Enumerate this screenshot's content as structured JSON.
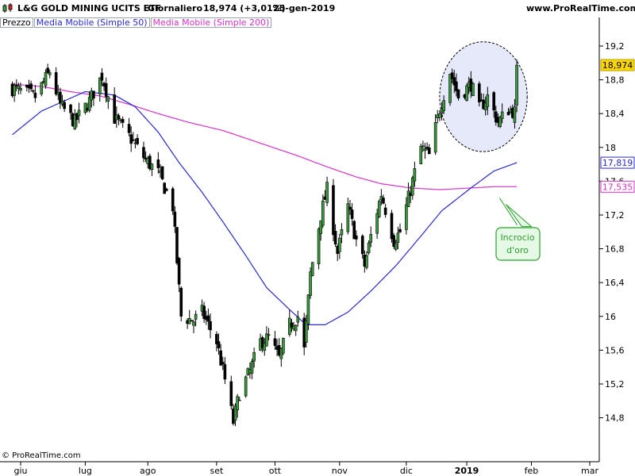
{
  "header": {
    "title": "L&G GOLD MINING UCITS ETF",
    "period": "Giornaliero",
    "last_price": "18,974 (+3,01%)",
    "date": "25-gen-2019",
    "site": "www.ProRealTime.com"
  },
  "legend": [
    "Prezzo",
    "Media Mobile (Simple 50)",
    "Media Mobile (Simple 200)"
  ],
  "copyright": "© ProRealTime.com",
  "annotation": {
    "text_line1": "Incrocio",
    "text_line2": "d'oro"
  },
  "colors": {
    "up": "#3c9a3c",
    "down": "#000000",
    "sma50": "#2929d6",
    "sma200": "#d633c8",
    "last_price_bg": "#ffd700",
    "annotation_border": "#2aa12a",
    "highlight_fill": "#e6e9fa"
  },
  "chart_data": {
    "type": "candlestick",
    "title": "L&G GOLD MINING UCITS ETF",
    "ylim": [
      14.4,
      19.5
    ],
    "yticks": [
      "19,2",
      "18,8",
      "18,4",
      "18",
      "17,6",
      "17,2",
      "16,8",
      "16,4",
      "16",
      "15,6",
      "15,2",
      "14,8"
    ],
    "ytick_values": [
      19.2,
      18.8,
      18.4,
      18.0,
      17.6,
      17.2,
      16.8,
      16.4,
      16.0,
      15.6,
      15.2,
      14.8
    ],
    "xticks": [
      "giu",
      "lug",
      "ago",
      "set",
      "ott",
      "nov",
      "dic",
      "2019",
      "feb",
      "mar"
    ],
    "xtick_dates": [
      "2018-06-01",
      "2018-07-02",
      "2018-08-01",
      "2018-09-03",
      "2018-10-01",
      "2018-11-01",
      "2018-12-03",
      "2019-01-01",
      "2019-02-01",
      "2019-03-01"
    ],
    "date_range": [
      "2018-05-28",
      "2019-03-25"
    ],
    "price_labels": [
      {
        "name": "Prezzo",
        "value": 18.974,
        "label": "18,974"
      },
      {
        "name": "Media Mobile (Simple 50)",
        "value": 17.819,
        "label": "17,819"
      },
      {
        "name": "Media Mobile (Simple 200)",
        "value": 17.535,
        "label": "17,535"
      }
    ],
    "close_anchors": [
      [
        "2018-05-28",
        18.7
      ],
      [
        "2018-06-08",
        18.6
      ],
      [
        "2018-06-15",
        18.9
      ],
      [
        "2018-06-20",
        18.5
      ],
      [
        "2018-06-27",
        18.3
      ],
      [
        "2018-07-04",
        18.55
      ],
      [
        "2018-07-10",
        18.85
      ],
      [
        "2018-07-16",
        18.35
      ],
      [
        "2018-07-24",
        18.1
      ],
      [
        "2018-07-31",
        17.85
      ],
      [
        "2018-08-06",
        17.7
      ],
      [
        "2018-08-13",
        17.3
      ],
      [
        "2018-08-17",
        16.0
      ],
      [
        "2018-08-23",
        15.95
      ],
      [
        "2018-08-27",
        16.05
      ],
      [
        "2018-09-03",
        15.7
      ],
      [
        "2018-09-07",
        15.25
      ],
      [
        "2018-09-11",
        14.75
      ],
      [
        "2018-09-14",
        15.1
      ],
      [
        "2018-09-19",
        15.35
      ],
      [
        "2018-09-24",
        15.7
      ],
      [
        "2018-09-28",
        15.75
      ],
      [
        "2018-10-03",
        15.5
      ],
      [
        "2018-10-08",
        15.9
      ],
      [
        "2018-10-12",
        16.0
      ],
      [
        "2018-10-15",
        15.6
      ],
      [
        "2018-10-18",
        16.5
      ],
      [
        "2018-10-23",
        17.2
      ],
      [
        "2018-10-26",
        17.5
      ],
      [
        "2018-10-31",
        16.75
      ],
      [
        "2018-11-05",
        17.3
      ],
      [
        "2018-11-09",
        16.9
      ],
      [
        "2018-11-13",
        16.6
      ],
      [
        "2018-11-16",
        16.95
      ],
      [
        "2018-11-21",
        17.45
      ],
      [
        "2018-11-27",
        16.9
      ],
      [
        "2018-11-30",
        17.0
      ],
      [
        "2018-12-05",
        17.5
      ],
      [
        "2018-12-10",
        18.0
      ],
      [
        "2018-12-14",
        17.9
      ],
      [
        "2018-12-19",
        18.45
      ],
      [
        "2018-12-24",
        18.9
      ],
      [
        "2018-12-28",
        18.6
      ],
      [
        "2019-01-03",
        18.75
      ],
      [
        "2019-01-07",
        18.45
      ],
      [
        "2019-01-11",
        18.6
      ],
      [
        "2019-01-16",
        18.3
      ],
      [
        "2019-01-21",
        18.45
      ],
      [
        "2019-01-24",
        18.42
      ],
      [
        "2019-01-25",
        18.974
      ]
    ],
    "ma50_anchors": [
      [
        "2018-05-28",
        18.15
      ],
      [
        "2018-06-11",
        18.43
      ],
      [
        "2018-07-02",
        18.66
      ],
      [
        "2018-07-16",
        18.62
      ],
      [
        "2018-07-26",
        18.48
      ],
      [
        "2018-08-06",
        18.18
      ],
      [
        "2018-08-16",
        17.82
      ],
      [
        "2018-08-27",
        17.47
      ],
      [
        "2018-09-06",
        17.12
      ],
      [
        "2018-09-17",
        16.72
      ],
      [
        "2018-09-27",
        16.34
      ],
      [
        "2018-10-08",
        16.08
      ],
      [
        "2018-10-16",
        15.9
      ],
      [
        "2018-10-25",
        15.9
      ],
      [
        "2018-11-05",
        16.05
      ],
      [
        "2018-11-16",
        16.3
      ],
      [
        "2018-11-28",
        16.6
      ],
      [
        "2018-12-10",
        16.95
      ],
      [
        "2018-12-20",
        17.25
      ],
      [
        "2019-01-03",
        17.52
      ],
      [
        "2019-01-14",
        17.72
      ],
      [
        "2019-01-25",
        17.82
      ]
    ],
    "ma200_anchors": [
      [
        "2018-05-28",
        18.75
      ],
      [
        "2018-06-11",
        18.72
      ],
      [
        "2018-06-25",
        18.66
      ],
      [
        "2018-07-09",
        18.61
      ],
      [
        "2018-07-23",
        18.51
      ],
      [
        "2018-08-06",
        18.4
      ],
      [
        "2018-08-20",
        18.3
      ],
      [
        "2018-09-06",
        18.2
      ],
      [
        "2018-09-24",
        18.05
      ],
      [
        "2018-10-12",
        17.9
      ],
      [
        "2018-10-26",
        17.77
      ],
      [
        "2018-11-09",
        17.65
      ],
      [
        "2018-11-21",
        17.57
      ],
      [
        "2018-12-05",
        17.52
      ],
      [
        "2018-12-19",
        17.5
      ],
      [
        "2019-01-03",
        17.52
      ],
      [
        "2019-01-14",
        17.535
      ],
      [
        "2019-01-25",
        17.535
      ]
    ],
    "annotations": [
      {
        "type": "ellipse",
        "region": "recent-highs",
        "date_range": [
          "2018-12-19",
          "2019-01-30"
        ],
        "price_range": [
          17.95,
          19.25
        ]
      },
      {
        "type": "callout",
        "text": "Incrocio d'oro",
        "points_to": [
          "2019-01-16",
          17.42
        ]
      }
    ],
    "xlabel": "",
    "ylabel": ""
  }
}
